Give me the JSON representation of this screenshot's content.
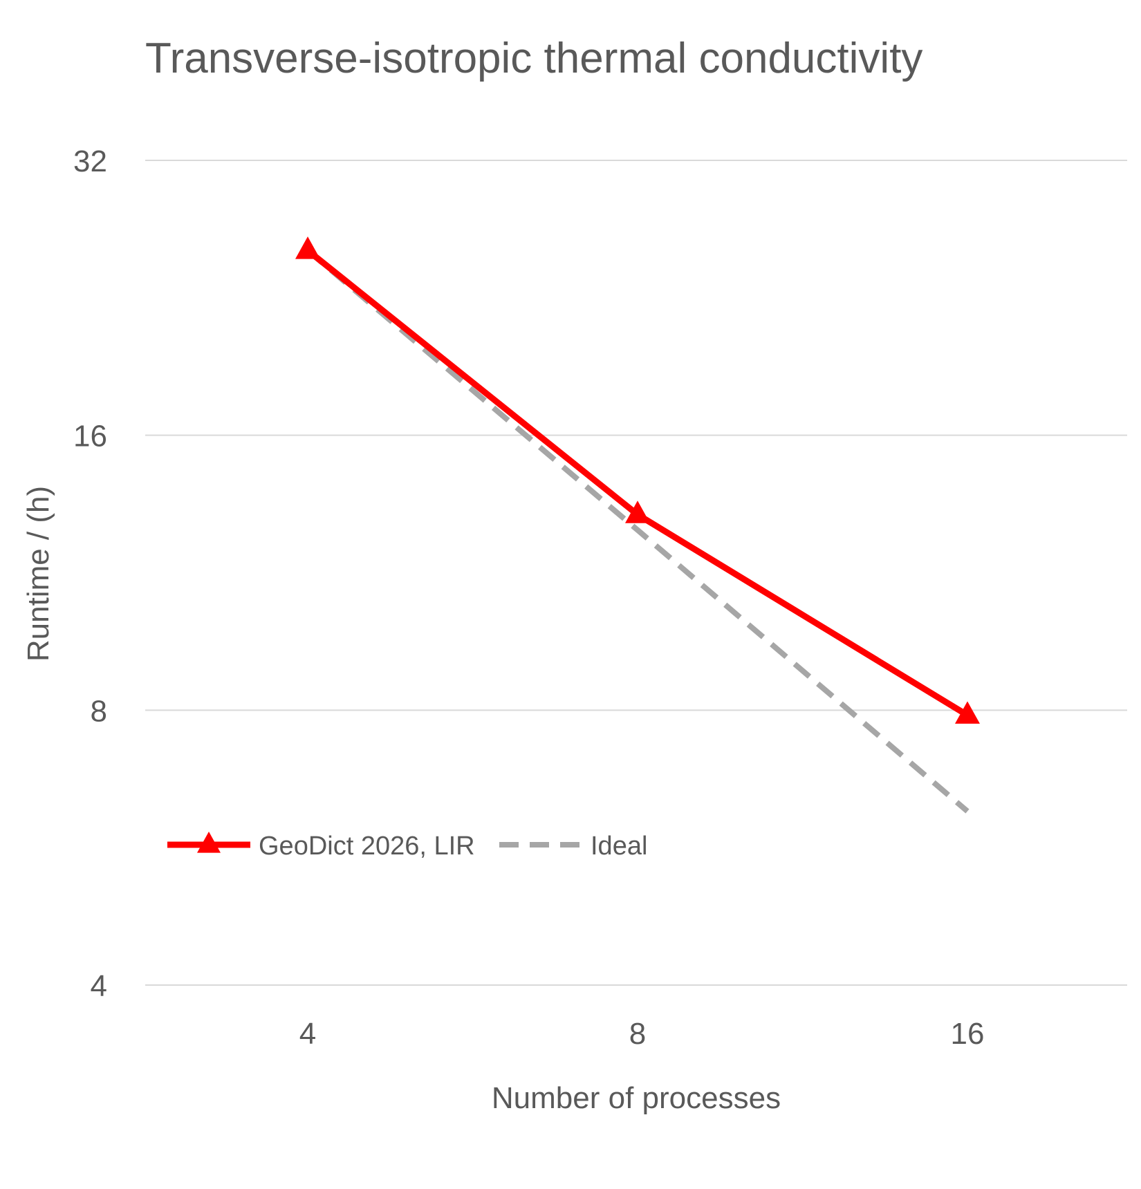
{
  "chart_data": {
    "type": "line",
    "title": "Transverse-isotropic thermal conductivity",
    "xlabel": "Number of processes",
    "ylabel": "Runtime / (h)",
    "x_scale": "log2",
    "y_scale": "log2",
    "categories": [
      "4",
      "8",
      "16"
    ],
    "x": [
      4,
      8,
      16
    ],
    "yticks": [
      4,
      8,
      16,
      32
    ],
    "ylim": [
      4,
      32
    ],
    "grid": true,
    "legend_position": "bottom-left",
    "series": [
      {
        "name": "GeoDict 2026, LIR",
        "values": [
          25.5,
          13.1,
          7.9
        ],
        "color": "#ff0000",
        "marker": "triangle",
        "style": "solid"
      },
      {
        "name": "Ideal",
        "values": [
          25.5,
          12.6,
          6.2
        ],
        "color": "#a6a6a6",
        "marker": "none",
        "style": "dashed"
      }
    ]
  }
}
